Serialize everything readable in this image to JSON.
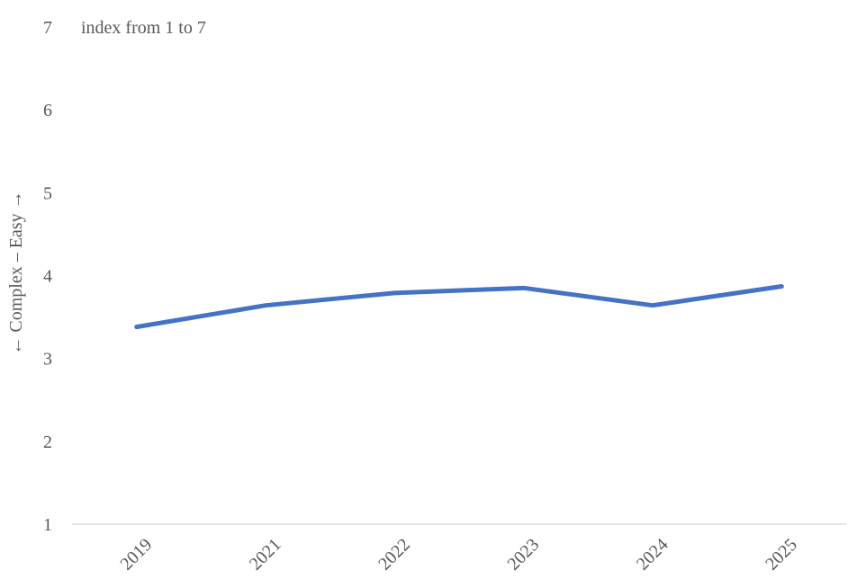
{
  "chart_data": {
    "type": "line",
    "categories": [
      "2019",
      "2021",
      "2022",
      "2023",
      "2024",
      "2025"
    ],
    "series": [
      {
        "values": [
          3.38,
          3.64,
          3.79,
          3.85,
          3.64,
          3.87
        ]
      }
    ],
    "annotation": "index from 1 to 7",
    "ylabel": "← Complex – Easy →",
    "xlabel": "",
    "ylim": [
      1,
      7
    ],
    "yticks": [
      "1",
      "2",
      "3",
      "4",
      "5",
      "6",
      "7"
    ],
    "grid": false,
    "colors": {
      "line": "#4472C4",
      "axis": "#D9D9D9",
      "text": "#595959"
    }
  }
}
